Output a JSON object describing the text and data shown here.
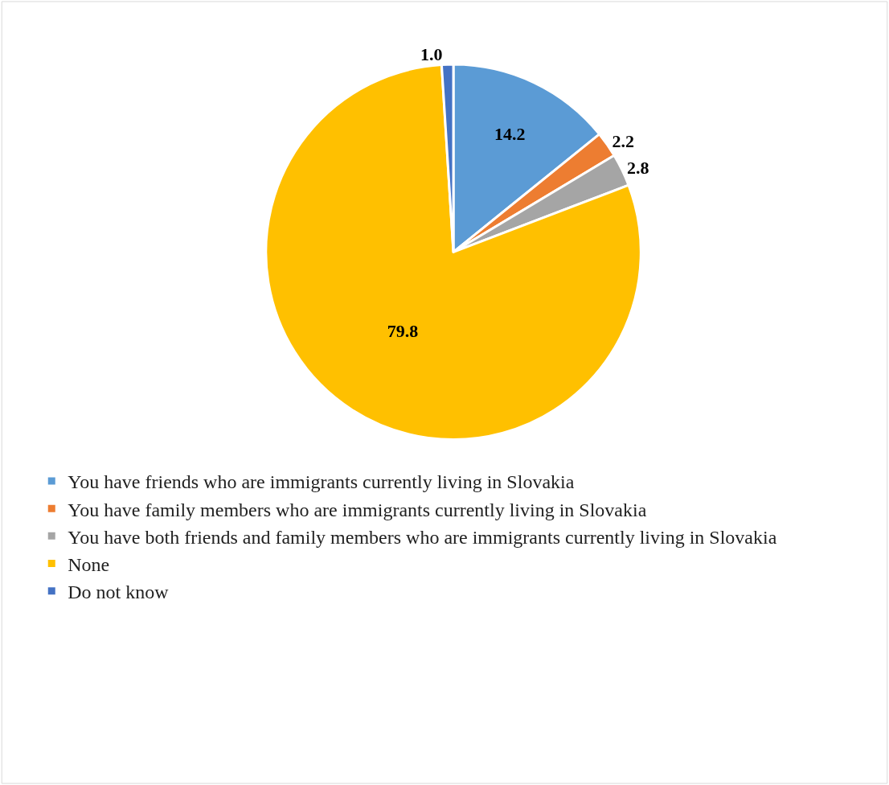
{
  "chart_data": {
    "type": "pie",
    "categories": [
      "You have friends who are immigrants currently living in Slovakia",
      "You have family members who are immigrants currently living in Slovakia",
      "You have both friends and family members who are immigrants currently living in Slovakia",
      "None",
      "Do not know"
    ],
    "values": [
      14.2,
      2.2,
      2.8,
      79.8,
      1.0
    ],
    "colors": [
      "#5b9bd5",
      "#ed7d31",
      "#a5a5a5",
      "#ffc000",
      "#4472c4"
    ],
    "value_labels": [
      "14.2",
      "2.2",
      "2.8",
      "79.8",
      "1.0"
    ],
    "legend": "bottom"
  }
}
